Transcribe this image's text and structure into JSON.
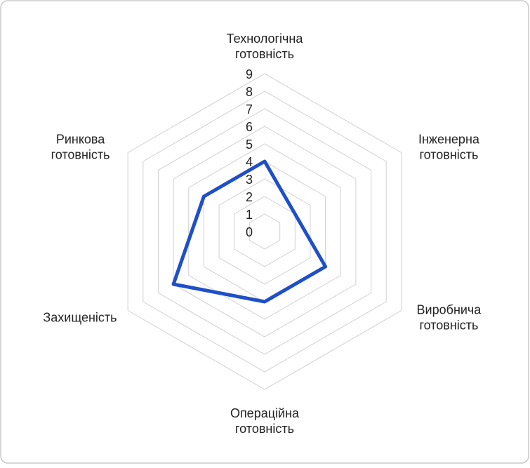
{
  "chart_data": {
    "type": "radar",
    "categories": [
      [
        "Технологічна",
        "готовність"
      ],
      [
        "Інженерна",
        "готовність"
      ],
      [
        "Виробнича",
        "готовність"
      ],
      [
        "Операційна",
        "готовність"
      ],
      [
        "Захищеність"
      ],
      [
        "Ринкова",
        "готовність"
      ]
    ],
    "series": [
      {
        "color": "#1f4fc8",
        "values": [
          4,
          2,
          4,
          4,
          6,
          4
        ]
      }
    ],
    "rlim": [
      0,
      9
    ],
    "rticks": [
      0,
      1,
      2,
      3,
      4,
      5,
      6,
      7,
      8,
      9
    ],
    "grid": true
  }
}
